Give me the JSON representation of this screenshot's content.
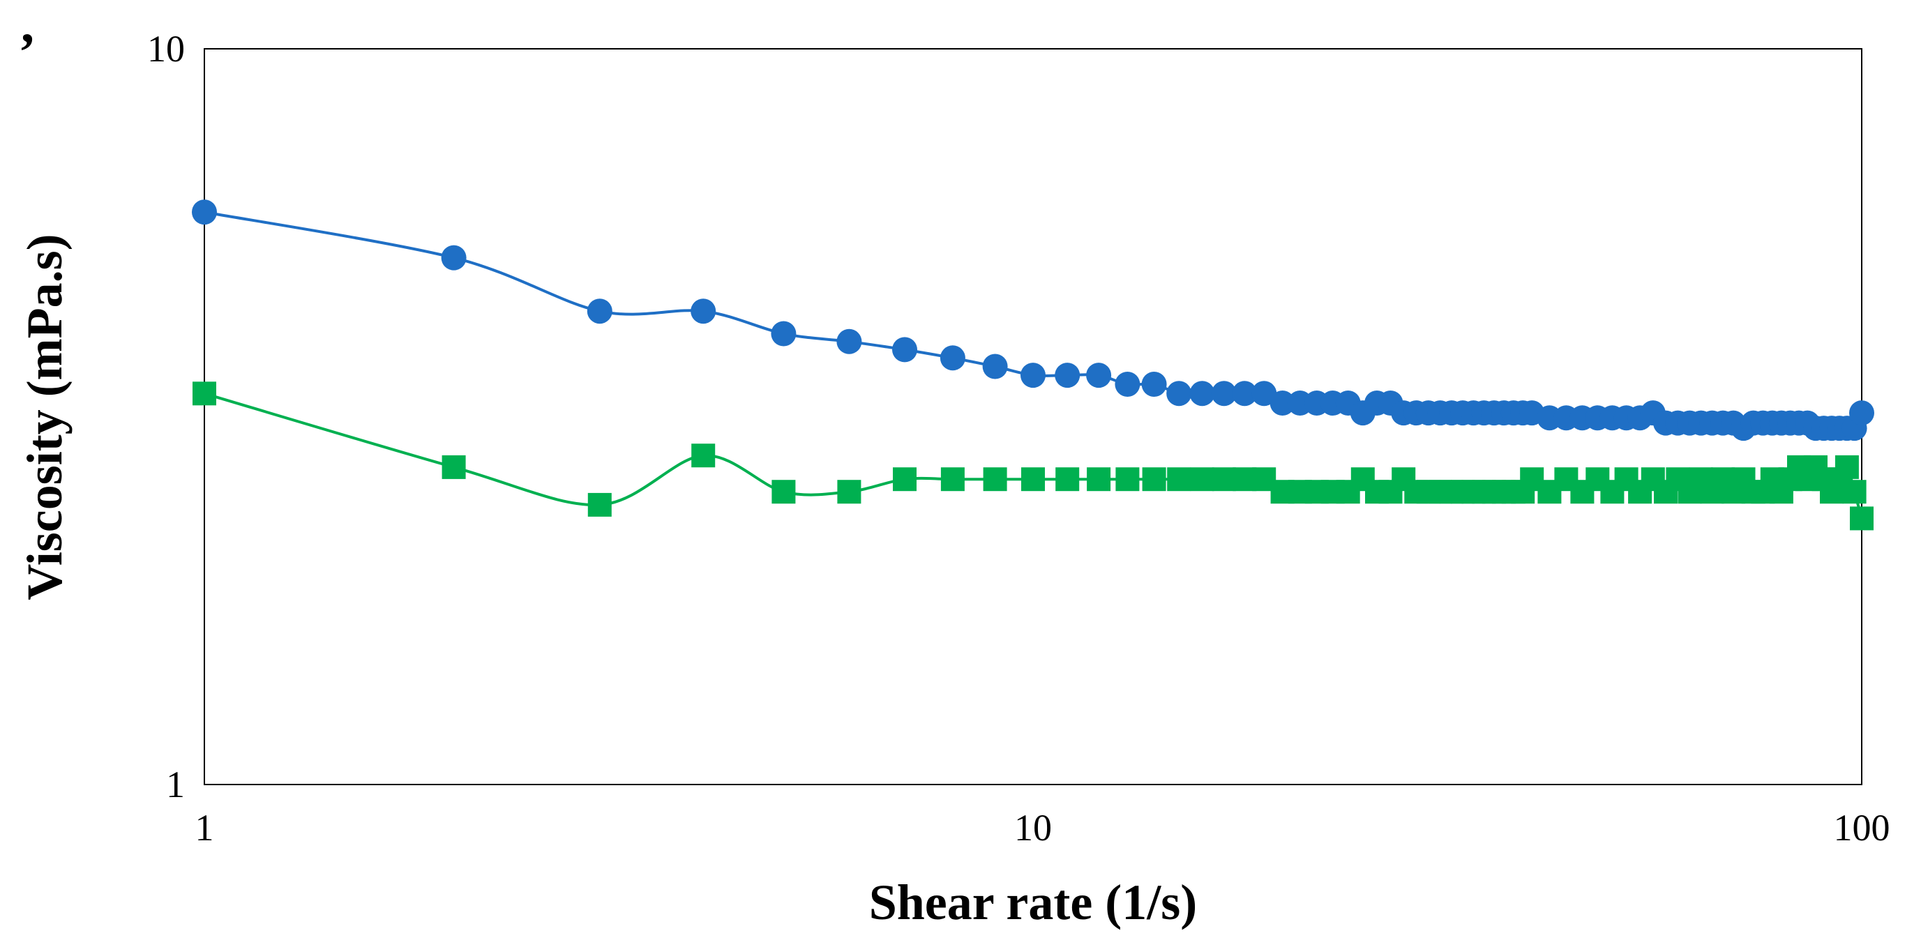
{
  "panel_label": ",",
  "chart_data": {
    "type": "line",
    "title": "",
    "xlabel": "Shear rate (1/s)",
    "ylabel": "Viscosity (mPa.s)",
    "xscale": "log",
    "yscale": "log",
    "xlim": [
      1,
      100
    ],
    "ylim": [
      1,
      10
    ],
    "xticks": [
      "1",
      "10",
      "100"
    ],
    "yticks": [
      "1",
      "10"
    ],
    "grid": false,
    "legend": "none",
    "series": [
      {
        "name": "series-blue-circles",
        "color": "#1F6FC5",
        "marker": "circle",
        "x": [
          1,
          2,
          3,
          4,
          5,
          6,
          7,
          8,
          9,
          10,
          11,
          12,
          13,
          14,
          15,
          16,
          17,
          18,
          19,
          20,
          21,
          22,
          23,
          24,
          25,
          26,
          27,
          28,
          29,
          30,
          31,
          32,
          33,
          34,
          35,
          36,
          37,
          38,
          39,
          40,
          42,
          44,
          46,
          48,
          50,
          52,
          54,
          56,
          58,
          60,
          62,
          64,
          66,
          68,
          70,
          72,
          74,
          76,
          78,
          80,
          82,
          84,
          86,
          88,
          90,
          92,
          94,
          96,
          98,
          100
        ],
        "y": [
          6.0,
          5.2,
          4.4,
          4.4,
          4.1,
          4.0,
          3.9,
          3.8,
          3.7,
          3.6,
          3.6,
          3.6,
          3.5,
          3.5,
          3.4,
          3.4,
          3.4,
          3.4,
          3.4,
          3.3,
          3.3,
          3.3,
          3.3,
          3.3,
          3.2,
          3.3,
          3.3,
          3.2,
          3.2,
          3.2,
          3.2,
          3.2,
          3.2,
          3.2,
          3.2,
          3.2,
          3.2,
          3.2,
          3.2,
          3.2,
          3.15,
          3.15,
          3.15,
          3.15,
          3.15,
          3.15,
          3.15,
          3.2,
          3.1,
          3.1,
          3.1,
          3.1,
          3.1,
          3.1,
          3.1,
          3.05,
          3.1,
          3.1,
          3.1,
          3.1,
          3.1,
          3.1,
          3.1,
          3.05,
          3.05,
          3.05,
          3.05,
          3.05,
          3.05,
          3.2
        ]
      },
      {
        "name": "series-green-squares",
        "color": "#00B050",
        "marker": "square",
        "x": [
          1,
          2,
          3,
          4,
          5,
          6,
          7,
          8,
          9,
          10,
          11,
          12,
          13,
          14,
          15,
          16,
          17,
          18,
          19,
          20,
          21,
          22,
          23,
          24,
          25,
          26,
          27,
          28,
          29,
          30,
          31,
          32,
          33,
          34,
          35,
          36,
          37,
          38,
          39,
          40,
          42,
          44,
          46,
          48,
          50,
          52,
          54,
          56,
          58,
          60,
          62,
          64,
          66,
          68,
          70,
          72,
          74,
          76,
          78,
          80,
          82,
          84,
          86,
          88,
          90,
          92,
          94,
          96,
          98,
          100
        ],
        "y": [
          3.4,
          2.7,
          2.4,
          2.8,
          2.5,
          2.5,
          2.6,
          2.6,
          2.6,
          2.6,
          2.6,
          2.6,
          2.6,
          2.6,
          2.6,
          2.6,
          2.6,
          2.6,
          2.6,
          2.5,
          2.5,
          2.5,
          2.5,
          2.5,
          2.6,
          2.5,
          2.5,
          2.6,
          2.5,
          2.5,
          2.5,
          2.5,
          2.5,
          2.5,
          2.5,
          2.5,
          2.5,
          2.5,
          2.5,
          2.6,
          2.5,
          2.6,
          2.5,
          2.6,
          2.5,
          2.6,
          2.5,
          2.6,
          2.5,
          2.6,
          2.5,
          2.6,
          2.5,
          2.6,
          2.5,
          2.6,
          2.5,
          2.5,
          2.6,
          2.5,
          2.6,
          2.7,
          2.6,
          2.7,
          2.6,
          2.5,
          2.6,
          2.7,
          2.5,
          2.3
        ]
      }
    ]
  }
}
